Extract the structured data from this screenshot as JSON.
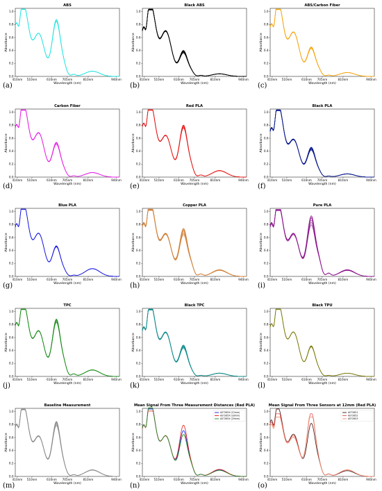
{
  "figure": {
    "x_tick_labels": [
      "410nm",
      "510nm",
      "610nm",
      "705nm",
      "705nm",
      "810nm",
      "940nm"
    ],
    "y_tick_labels": [
      "0.0",
      "0.2",
      "0.4",
      "0.6",
      "0.8",
      "1.0"
    ],
    "xlabel": "Wavelength (nm)",
    "ylabel": "Absorbance"
  },
  "chart_data": [
    {
      "type": "line",
      "panel_label": "(a)",
      "title": "ABS",
      "color": "#17e3e0",
      "lines": 4,
      "spread": 0.02,
      "profile": "abs",
      "ylim": [
        0,
        1.05
      ]
    },
    {
      "type": "line",
      "panel_label": "(b)",
      "title": "Black ABS",
      "color": "#000000",
      "lines": 8,
      "spread": 0.05,
      "profile": "blackabs",
      "ylim": [
        0,
        1.05
      ]
    },
    {
      "type": "line",
      "panel_label": "(c)",
      "title": "ABS/Carbon Fiber",
      "color": "#f5a30a",
      "lines": 5,
      "spread": 0.03,
      "profile": "abscf",
      "ylim": [
        0,
        1.05
      ]
    },
    {
      "type": "line",
      "panel_label": "(d)",
      "title": "Carbon Fiber",
      "color": "#e61ee6",
      "lines": 5,
      "spread": 0.03,
      "profile": "cf",
      "ylim": [
        0,
        1.05
      ]
    },
    {
      "type": "line",
      "panel_label": "(e)",
      "title": "Red PLA",
      "color": "#e61414",
      "lines": 6,
      "spread": 0.03,
      "profile": "redpla",
      "ylim": [
        0,
        1.05
      ]
    },
    {
      "type": "line",
      "panel_label": "(f)",
      "title": "Black PLA",
      "color": "#0a1a8c",
      "lines": 8,
      "spread": 0.05,
      "profile": "blackpla",
      "ylim": [
        0,
        1.05
      ]
    },
    {
      "type": "line",
      "panel_label": "(g)",
      "title": "Blue PLA",
      "color": "#1a1ae0",
      "lines": 5,
      "spread": 0.02,
      "profile": "bluepla",
      "ylim": [
        0,
        1.05
      ]
    },
    {
      "type": "line",
      "panel_label": "(h)",
      "title": "Copper PLA",
      "color": "#d2823c",
      "lines": 8,
      "spread": 0.07,
      "profile": "copper",
      "ylim": [
        0,
        1.05
      ]
    },
    {
      "type": "line",
      "panel_label": "(i)",
      "title": "Pure PLA",
      "color": "#8c148c",
      "lines": 6,
      "spread": 0.08,
      "profile": "pure",
      "ylim": [
        0,
        1.05
      ]
    },
    {
      "type": "line",
      "panel_label": "(j)",
      "title": "TPC",
      "color": "#1a8c1a",
      "lines": 6,
      "spread": 0.03,
      "profile": "tpc",
      "ylim": [
        0,
        1.05
      ]
    },
    {
      "type": "line",
      "panel_label": "(k)",
      "title": "Black TPC",
      "color": "#138c8c",
      "lines": 8,
      "spread": 0.05,
      "profile": "blacktpc",
      "ylim": [
        0,
        1.05
      ]
    },
    {
      "type": "line",
      "panel_label": "(l)",
      "title": "Black TPU",
      "color": "#7a7a0a",
      "lines": 5,
      "spread": 0.02,
      "profile": "blacktpu",
      "ylim": [
        0,
        1.05
      ]
    },
    {
      "type": "line",
      "panel_label": "(m)",
      "title": "Baseline Measurement",
      "color": "#8c8c8c",
      "lines": 8,
      "spread": 0.04,
      "profile": "baseline",
      "ylim": [
        0,
        1.05
      ]
    },
    {
      "type": "line",
      "panel_label": "(n)",
      "title": "Mean Signal From Three Measurement Distances (Red PLA)",
      "profile": "distances",
      "ylim": [
        0,
        1.05
      ],
      "series": [
        {
          "name": "AS7265X (12mm)",
          "color": "#1a1ae0"
        },
        {
          "name": "AS7265X (18mm)",
          "color": "#e61414"
        },
        {
          "name": "AS7265X (20mm)",
          "color": "#1a8c1a"
        }
      ]
    },
    {
      "type": "line",
      "panel_label": "(o)",
      "title": "Mean Signal From Three Sensors at 12mm (Red PLA)",
      "profile": "sensors",
      "ylim": [
        0,
        1.05
      ],
      "series": [
        {
          "name": "AS72651",
          "color": "#3a1010"
        },
        {
          "name": "AS72652",
          "color": "#e84a4a"
        },
        {
          "name": "AS72653",
          "color": "#f08c6e"
        }
      ]
    }
  ]
}
